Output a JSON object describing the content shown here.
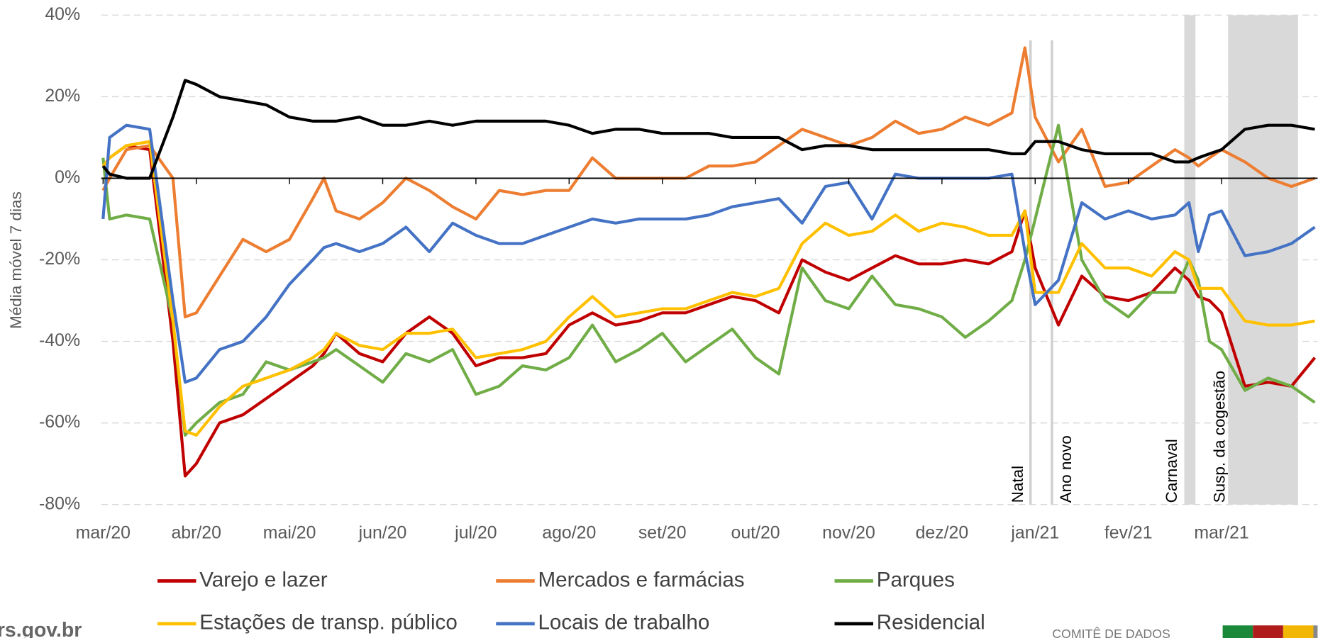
{
  "chart_data": {
    "type": "line",
    "y_label": "Média móvel 7 dias",
    "xlim": [
      -0.02,
      13.03
    ],
    "ylim": [
      -80,
      40
    ],
    "yticks": [
      {
        "value": -80,
        "label": "-80%"
      },
      {
        "value": -60,
        "label": "-60%"
      },
      {
        "value": -40,
        "label": "-40%"
      },
      {
        "value": -20,
        "label": "-20%"
      },
      {
        "value": 0,
        "label": "0%"
      },
      {
        "value": 20,
        "label": "20%"
      },
      {
        "value": 40,
        "label": "40%"
      }
    ],
    "xticks": [
      {
        "value": 0,
        "label": "mar/20"
      },
      {
        "value": 1,
        "label": "abr/20"
      },
      {
        "value": 2,
        "label": "mai/20"
      },
      {
        "value": 3,
        "label": "jun/20"
      },
      {
        "value": 4,
        "label": "jul/20"
      },
      {
        "value": 5,
        "label": "ago/20"
      },
      {
        "value": 6,
        "label": "set/20"
      },
      {
        "value": 7,
        "label": "out/20"
      },
      {
        "value": 8,
        "label": "nov/20"
      },
      {
        "value": 9,
        "label": "dez/20"
      },
      {
        "value": 10,
        "label": "jan/21"
      },
      {
        "value": 11,
        "label": "fev/21"
      },
      {
        "value": 12,
        "label": "mar/21"
      }
    ],
    "grid": true,
    "annotations": [
      {
        "label": "Natal",
        "x": 9.95
      },
      {
        "label": "Ano novo",
        "x": 10.18
      },
      {
        "label": "Carnaval",
        "x0": 11.6,
        "x1": 11.72
      },
      {
        "label": "Susp. da cogestão",
        "x0": 12.07,
        "x1": 12.82
      }
    ],
    "x": [
      0,
      0.07,
      0.25,
      0.5,
      0.75,
      0.88,
      1,
      1.25,
      1.5,
      1.75,
      2,
      2.25,
      2.37,
      2.5,
      2.75,
      3,
      3.25,
      3.5,
      3.75,
      4,
      4.25,
      4.5,
      4.75,
      5,
      5.25,
      5.5,
      5.75,
      6,
      6.25,
      6.5,
      6.75,
      7,
      7.25,
      7.5,
      7.75,
      8,
      8.25,
      8.5,
      8.75,
      9,
      9.25,
      9.5,
      9.75,
      9.89,
      10,
      10.25,
      10.5,
      10.75,
      11,
      11.25,
      11.5,
      11.65,
      11.75,
      11.87,
      12,
      12.25,
      12.5,
      12.75,
      13
    ],
    "series": [
      {
        "name": "Varejo e lazer",
        "color": "#c00000",
        "values": [
          3,
          5,
          8,
          7,
          -40,
          -73,
          -70,
          -60,
          -58,
          -54,
          -50,
          -46,
          -43,
          -38,
          -43,
          -45,
          -38,
          -34,
          -38,
          -46,
          -44,
          -44,
          -43,
          -36,
          -33,
          -36,
          -35,
          -33,
          -33,
          -31,
          -29,
          -30,
          -33,
          -20,
          -23,
          -25,
          -22,
          -19,
          -21,
          -21,
          -20,
          -21,
          -18,
          -8,
          -22,
          -36,
          -24,
          -29,
          -30,
          -28,
          -22,
          -25,
          -29,
          -30,
          -33,
          -51,
          -50,
          -51,
          -44
        ]
      },
      {
        "name": "Mercados e farmácias",
        "color": "#ed7d31",
        "values": [
          -3,
          0,
          7,
          8,
          0,
          -34,
          -33,
          -24,
          -15,
          -18,
          -15,
          -5,
          0,
          -8,
          -10,
          -6,
          0,
          -3,
          -7,
          -10,
          -3,
          -4,
          -3,
          -3,
          5,
          0,
          0,
          0,
          0,
          3,
          3,
          4,
          8,
          12,
          10,
          8,
          10,
          14,
          11,
          12,
          15,
          13,
          16,
          32,
          15,
          4,
          12,
          -2,
          -1,
          3,
          7,
          5,
          3,
          5,
          7,
          4,
          0,
          -2,
          0
        ]
      },
      {
        "name": "Parques",
        "color": "#70ad47",
        "values": [
          5,
          -10,
          -9,
          -10,
          -35,
          -63,
          -60,
          -55,
          -53,
          -45,
          -47,
          -45,
          -44,
          -42,
          -46,
          -50,
          -43,
          -45,
          -42,
          -53,
          -51,
          -46,
          -47,
          -44,
          -36,
          -45,
          -42,
          -38,
          -45,
          -41,
          -37,
          -44,
          -48,
          -22,
          -30,
          -32,
          -24,
          -31,
          -32,
          -34,
          -39,
          -35,
          -30,
          -20,
          -10,
          13,
          -20,
          -30,
          -34,
          -28,
          -28,
          -20,
          -25,
          -40,
          -42,
          -52,
          -49,
          -51,
          -55
        ]
      },
      {
        "name": "Estações de transp. público",
        "color": "#ffc000",
        "values": [
          3,
          5,
          8,
          9,
          -35,
          -62,
          -63,
          -56,
          -51,
          -49,
          -47,
          -44,
          -42,
          -38,
          -41,
          -42,
          -38,
          -38,
          -37,
          -44,
          -43,
          -42,
          -40,
          -34,
          -29,
          -34,
          -33,
          -32,
          -32,
          -30,
          -28,
          -29,
          -27,
          -16,
          -11,
          -14,
          -13,
          -9,
          -13,
          -11,
          -12,
          -14,
          -14,
          -8,
          -28,
          -28,
          -16,
          -22,
          -22,
          -24,
          -18,
          -20,
          -27,
          -27,
          -27,
          -35,
          -36,
          -36,
          -35
        ]
      },
      {
        "name": "Locais de trabalho",
        "color": "#4472c4",
        "values": [
          -10,
          10,
          13,
          12,
          -30,
          -50,
          -49,
          -42,
          -40,
          -34,
          -26,
          -20,
          -17,
          -16,
          -18,
          -16,
          -12,
          -18,
          -11,
          -14,
          -16,
          -16,
          -14,
          -12,
          -10,
          -11,
          -10,
          -10,
          -10,
          -9,
          -7,
          -6,
          -5,
          -11,
          -2,
          -1,
          -10,
          1,
          0,
          0,
          0,
          0,
          1,
          -18,
          -31,
          -25,
          -6,
          -10,
          -8,
          -10,
          -9,
          -6,
          -18,
          -9,
          -8,
          -19,
          -18,
          -16,
          -12
        ]
      },
      {
        "name": "Residencial",
        "color": "#000000",
        "values": [
          3,
          1,
          0,
          0,
          15,
          24,
          23,
          20,
          19,
          18,
          15,
          14,
          14,
          14,
          15,
          13,
          13,
          14,
          13,
          14,
          14,
          14,
          14,
          13,
          11,
          12,
          12,
          11,
          11,
          11,
          10,
          10,
          10,
          7,
          8,
          8,
          7,
          7,
          7,
          7,
          7,
          7,
          6,
          6,
          9,
          9,
          7,
          6,
          6,
          6,
          4,
          4,
          5,
          6,
          7,
          12,
          13,
          13,
          12
        ]
      }
    ]
  },
  "footer": {
    "site": "rs.gov.br",
    "committee": "COMITÊ DE DADOS"
  }
}
